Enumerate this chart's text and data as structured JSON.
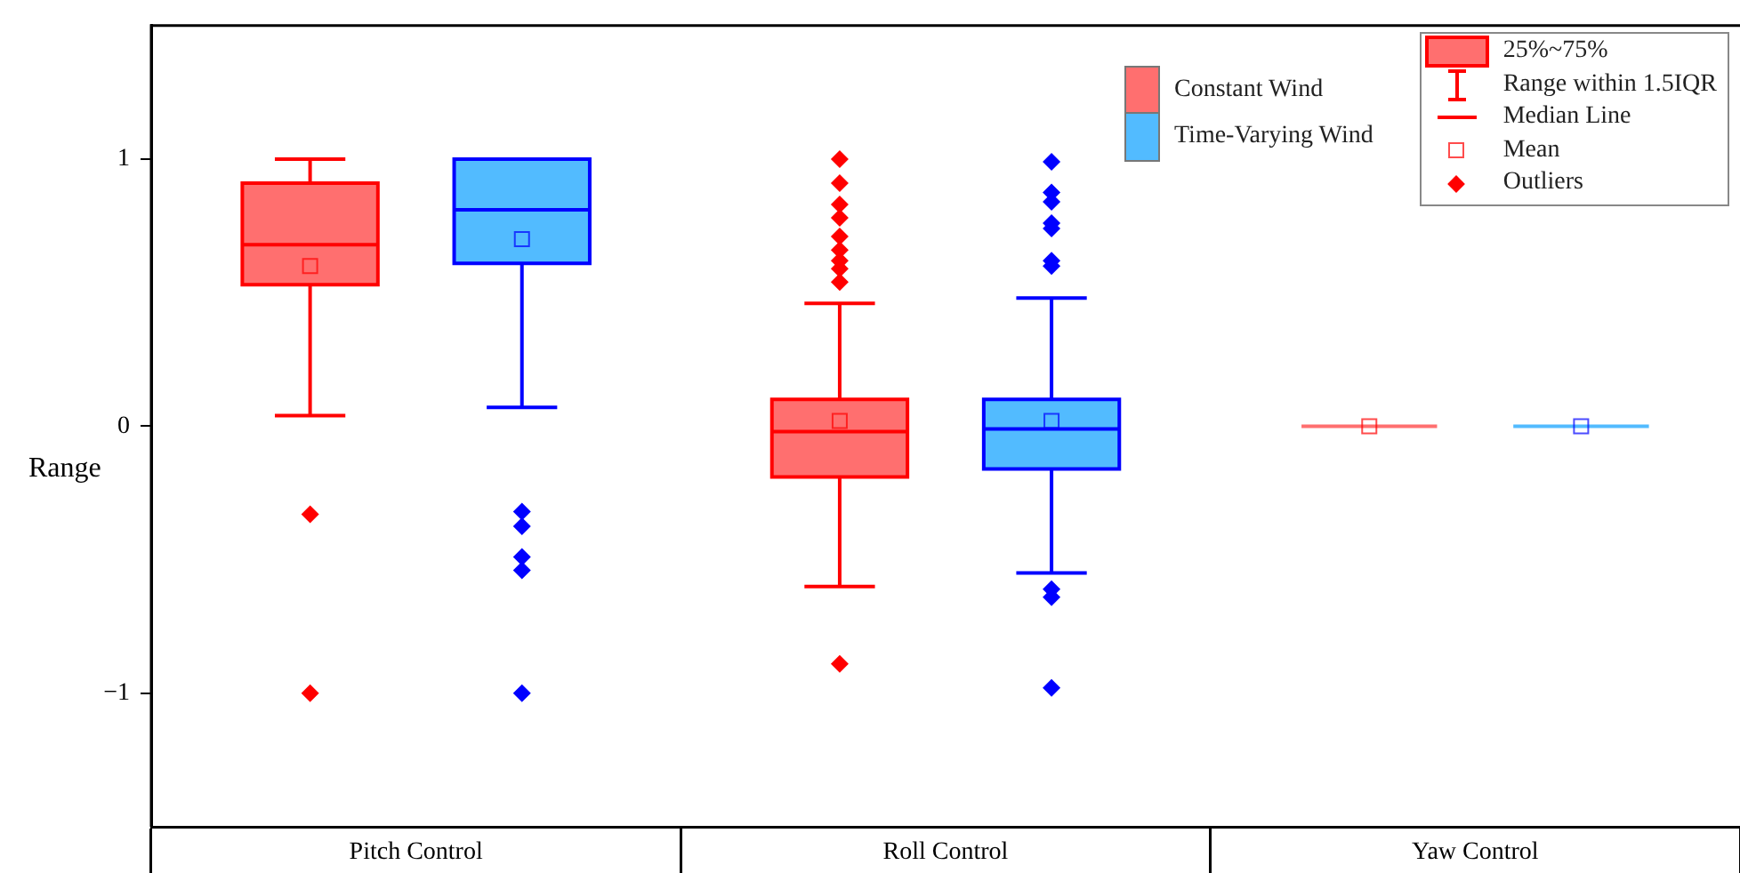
{
  "chart_data": {
    "type": "box",
    "ylabel": "Range",
    "categories": [
      "Pitch Control",
      "Roll Control",
      "Yaw Control"
    ],
    "ylim": [
      -1.5,
      1.5
    ],
    "yticks": [
      {
        "value": -1,
        "label": "−1"
      },
      0,
      1
    ],
    "grid": false,
    "legend": "top right",
    "series": [
      {
        "name": "Constant Wind",
        "color": "#ff6f6f",
        "boxes": [
          {
            "low": 0.04,
            "q1": 0.53,
            "median": 0.68,
            "q3": 0.91,
            "high": 1.0,
            "mean": 0.6,
            "outliers": [
              -0.33,
              -1.0
            ]
          },
          {
            "low": -0.6,
            "q1": -0.19,
            "median": -0.02,
            "q3": 0.1,
            "high": 0.46,
            "mean": 0.02,
            "outliers": [
              1.0,
              0.91,
              0.83,
              0.78,
              0.71,
              0.66,
              0.62,
              0.59,
              0.54,
              -0.89
            ]
          },
          {
            "low": 0,
            "q1": 0,
            "median": 0,
            "q3": 0,
            "high": 0,
            "mean": 0
          }
        ]
      },
      {
        "name": "Time-Varying Wind",
        "color": "#52bbff",
        "boxes": [
          {
            "low": 0.07,
            "q1": 0.61,
            "median": 0.81,
            "q3": 1.0,
            "high": 1.0,
            "mean": 0.7,
            "outliers": [
              -0.32,
              -0.375,
              -0.49,
              -0.54,
              -1.0
            ]
          },
          {
            "low": -0.55,
            "q1": -0.16,
            "median": -0.01,
            "q3": 0.1,
            "high": 0.48,
            "mean": 0.02,
            "outliers": [
              0.99,
              0.875,
              0.84,
              0.76,
              0.74,
              0.62,
              0.6,
              -0.61,
              -0.64,
              -0.98
            ]
          },
          {
            "low": 0,
            "q1": 0,
            "median": 0,
            "q3": 0,
            "high": 0,
            "mean": 0
          }
        ]
      }
    ],
    "annotations": [
      "25%~75%",
      "Range within 1.5IQR",
      "Median Line",
      "Mean",
      "Outliers"
    ]
  }
}
